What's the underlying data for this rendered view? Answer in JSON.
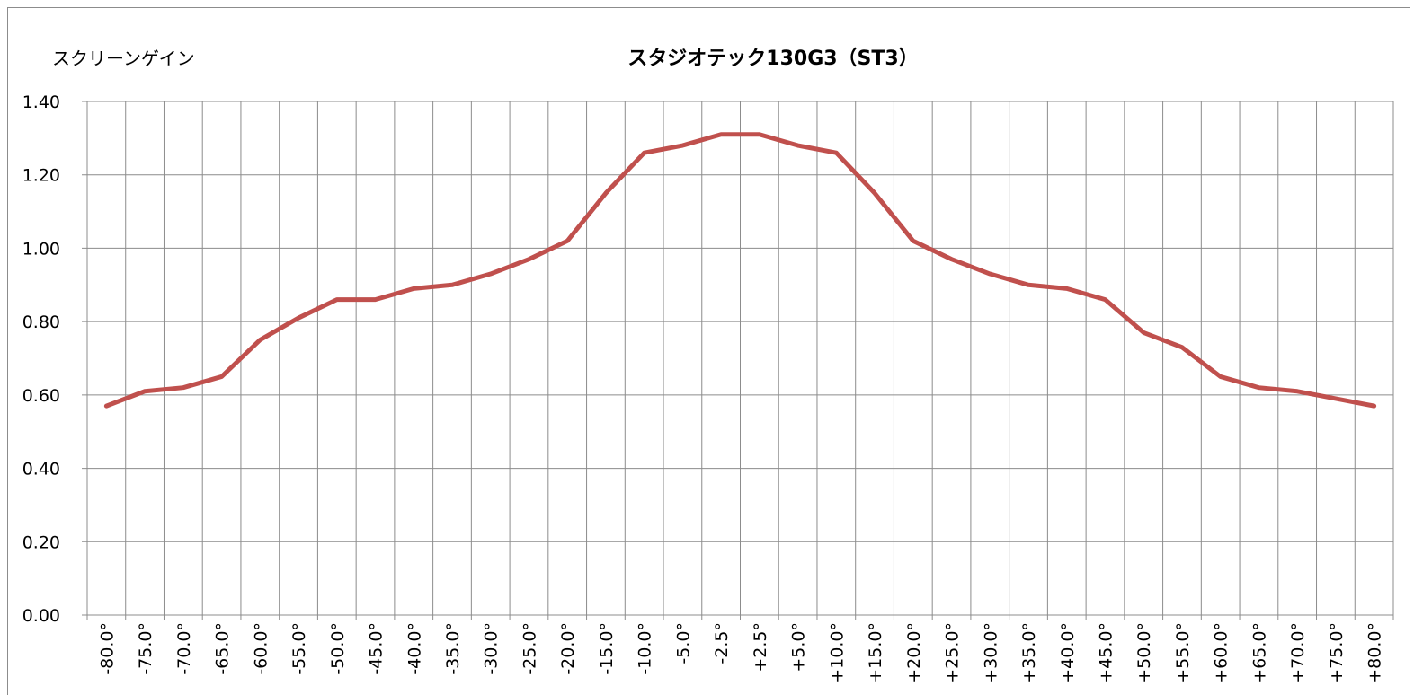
{
  "chart_data": {
    "type": "line",
    "title": "スタジオテック130G3（ST3）",
    "y_label": "スクリーンゲイン",
    "categories": [
      "-80.0°",
      "-75.0°",
      "-70.0°",
      "-65.0°",
      "-60.0°",
      "-55.0°",
      "-50.0°",
      "-45.0°",
      "-40.0°",
      "-35.0°",
      "-30.0°",
      "-25.0°",
      "-20.0°",
      "-15.0°",
      "-10.0°",
      "-5.0°",
      "-2.5°",
      "+2.5°",
      "+5.0°",
      "+10.0°",
      "+15.0°",
      "+20.0°",
      "+25.0°",
      "+30.0°",
      "+35.0°",
      "+40.0°",
      "+45.0°",
      "+50.0°",
      "+55.0°",
      "+60.0°",
      "+65.0°",
      "+70.0°",
      "+75.0°",
      "+80.0°"
    ],
    "values": [
      0.57,
      0.61,
      0.62,
      0.65,
      0.75,
      0.81,
      0.86,
      0.86,
      0.89,
      0.9,
      0.93,
      0.97,
      1.02,
      1.15,
      1.26,
      1.28,
      1.31,
      1.31,
      1.28,
      1.26,
      1.15,
      1.02,
      0.97,
      0.93,
      0.9,
      0.89,
      0.86,
      0.77,
      0.73,
      0.65,
      0.62,
      0.61,
      0.59,
      0.57
    ],
    "color": "#c0504d",
    "ylim": [
      0,
      1.4
    ],
    "yticks": [
      {
        "value": 0,
        "label": "0.00"
      },
      {
        "value": 0.2,
        "label": "0.20"
      },
      {
        "value": 0.4,
        "label": "0.40"
      },
      {
        "value": 0.6,
        "label": "0.60"
      },
      {
        "value": 0.8,
        "label": "0.80"
      },
      {
        "value": 1.0,
        "label": "1.00"
      },
      {
        "value": 1.2,
        "label": "1.20"
      },
      {
        "value": 1.4,
        "label": "1.40"
      }
    ],
    "grid": true
  }
}
